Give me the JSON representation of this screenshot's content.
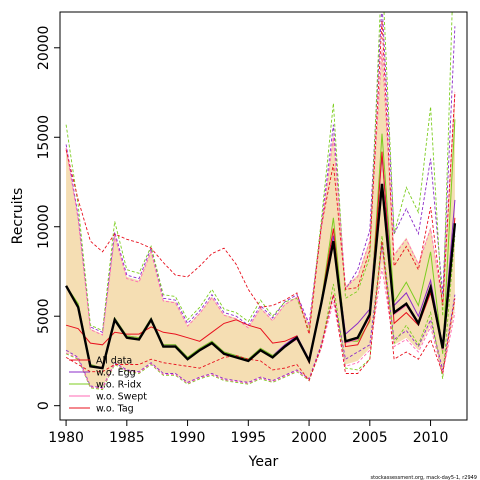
{
  "chart_data": {
    "type": "line",
    "xlabel": "Year",
    "ylabel": "Recruits",
    "xlim": [
      1979.5,
      2013
    ],
    "ylim": [
      -800,
      22000
    ],
    "xticks": [
      1980,
      1985,
      1990,
      1995,
      2000,
      2005,
      2010
    ],
    "yticks": [
      0,
      5000,
      10000,
      15000,
      20000
    ],
    "credit": "stockassessment.org, mack-day5-1, r2949",
    "x": [
      1980,
      1981,
      1982,
      1983,
      1984,
      1985,
      1986,
      1987,
      1988,
      1989,
      1990,
      1991,
      1992,
      1993,
      1994,
      1995,
      1996,
      1997,
      1998,
      1999,
      2000,
      2001,
      2002,
      2003,
      2004,
      2005,
      2006,
      2007,
      2008,
      2009,
      2010,
      2011,
      2012
    ],
    "base": {
      "name": "All data",
      "color": "#000000",
      "values": [
        6700,
        5500,
        2200,
        2100,
        4800,
        3800,
        3700,
        4800,
        3300,
        3300,
        2600,
        3100,
        3500,
        2900,
        2700,
        2500,
        3100,
        2700,
        3300,
        3800,
        2500,
        5700,
        9200,
        3600,
        3800,
        5100,
        12400,
        5200,
        5700,
        4600,
        6600,
        3200,
        10200
      ],
      "band_low": [
        3000,
        2700,
        1100,
        1000,
        2400,
        2000,
        1900,
        2400,
        1800,
        1800,
        1300,
        1600,
        1800,
        1500,
        1400,
        1300,
        1600,
        1400,
        1700,
        2000,
        1500,
        3300,
        6000,
        2300,
        2500,
        3200,
        8000,
        3400,
        3800,
        3100,
        4500,
        1900,
        5400
      ],
      "band_high": [
        14500,
        10500,
        4300,
        4000,
        9600,
        7200,
        7000,
        8700,
        5900,
        5800,
        4500,
        5200,
        6100,
        5100,
        4900,
        4400,
        5500,
        4800,
        5700,
        6100,
        4500,
        9900,
        15300,
        6700,
        7300,
        9300,
        20200,
        8500,
        9400,
        8000,
        10000,
        5800,
        17800
      ]
    },
    "series": [
      {
        "name": "w.o. Egg",
        "color": "#8B2BC8",
        "values": [
          6700,
          5600,
          2300,
          2100,
          4900,
          3900,
          3800,
          4900,
          3400,
          3400,
          2700,
          3200,
          3600,
          3000,
          2800,
          2600,
          3200,
          2800,
          3400,
          3900,
          2600,
          5800,
          9500,
          4000,
          4600,
          5400,
          14000,
          5600,
          6300,
          5000,
          7000,
          3300,
          11500
        ],
        "band_low": [
          3100,
          2700,
          1100,
          1000,
          2400,
          2000,
          1900,
          2400,
          1800,
          1800,
          1300,
          1600,
          1800,
          1500,
          1400,
          1300,
          1600,
          1400,
          1700,
          2000,
          1500,
          3400,
          6200,
          2600,
          3000,
          3400,
          9000,
          3700,
          4200,
          3300,
          4800,
          2000,
          6200
        ],
        "band_high": [
          14600,
          10600,
          4400,
          4100,
          9700,
          7300,
          7100,
          8800,
          6000,
          5900,
          4600,
          5300,
          6200,
          5200,
          5000,
          4500,
          5600,
          4900,
          5800,
          6200,
          4600,
          10000,
          15700,
          6500,
          7600,
          9800,
          22500,
          9600,
          11000,
          9600,
          13800,
          6200,
          21200
        ]
      },
      {
        "name": "w.o. R-idx",
        "color": "#7CCD1F",
        "values": [
          6700,
          5700,
          2300,
          2100,
          4900,
          3900,
          3800,
          4900,
          3400,
          3400,
          2700,
          3200,
          3600,
          3000,
          2800,
          2600,
          3200,
          2800,
          3300,
          3800,
          2500,
          5800,
          10500,
          3600,
          3600,
          4700,
          15200,
          5800,
          6900,
          5600,
          8600,
          2900,
          16000
        ],
        "band_low": [
          2900,
          2600,
          1000,
          900,
          2300,
          1900,
          1800,
          2300,
          1700,
          1700,
          1200,
          1500,
          1700,
          1400,
          1300,
          1200,
          1500,
          1300,
          1600,
          1900,
          1400,
          3200,
          6800,
          2100,
          2000,
          2600,
          9500,
          3500,
          4500,
          3400,
          5200,
          1500,
          9500
        ],
        "band_high": [
          15700,
          11200,
          4500,
          4200,
          10300,
          7600,
          7400,
          8900,
          6200,
          6100,
          4800,
          5500,
          6500,
          5400,
          5200,
          4700,
          5900,
          5000,
          5800,
          6000,
          4200,
          10300,
          16900,
          6000,
          6400,
          8300,
          24500,
          9600,
          12200,
          10800,
          16700,
          5000,
          27000
        ]
      },
      {
        "name": "w.o. Swept",
        "color": "#FF69B4",
        "values": [
          6650,
          5500,
          2200,
          2100,
          4800,
          3800,
          3700,
          4800,
          3300,
          3300,
          2600,
          3100,
          3500,
          2900,
          2700,
          2500,
          3100,
          2700,
          3300,
          3700,
          2500,
          5600,
          9000,
          3500,
          3700,
          5000,
          12000,
          5100,
          5600,
          4500,
          6500,
          3100,
          10000
        ],
        "band_low": [
          2950,
          2650,
          1050,
          950,
          2350,
          1950,
          1850,
          2350,
          1750,
          1750,
          1250,
          1550,
          1750,
          1450,
          1350,
          1250,
          1550,
          1350,
          1650,
          1950,
          1450,
          3200,
          5800,
          2200,
          2400,
          3100,
          7700,
          3300,
          3700,
          3000,
          4400,
          1800,
          5200
        ],
        "band_high": [
          14400,
          10400,
          4250,
          3950,
          9500,
          7100,
          6900,
          8600,
          5850,
          5750,
          4450,
          5150,
          6050,
          5050,
          4850,
          4350,
          5450,
          4750,
          5650,
          6050,
          4450,
          9800,
          15000,
          6600,
          7200,
          9200,
          19900,
          8400,
          9300,
          7900,
          9900,
          5700,
          17500
        ]
      },
      {
        "name": "w.o. Tag",
        "color": "#E8101E",
        "values": [
          4500,
          4300,
          3500,
          3400,
          4100,
          4000,
          4000,
          4400,
          4100,
          4000,
          3800,
          3600,
          4100,
          4600,
          4800,
          4500,
          4300,
          3500,
          3600,
          3900,
          2400,
          5800,
          9900,
          3300,
          3400,
          4800,
          14200,
          4600,
          5200,
          4500,
          6300,
          3200,
          10500
        ],
        "band_low": [
          2700,
          2300,
          1900,
          1900,
          2300,
          2300,
          2300,
          2600,
          2400,
          2300,
          2200,
          2100,
          2400,
          2700,
          2800,
          2600,
          2500,
          2000,
          2100,
          2300,
          1400,
          3300,
          6200,
          1800,
          1800,
          2600,
          9200,
          2600,
          3000,
          2600,
          3700,
          1800,
          6000
        ],
        "band_high": [
          14300,
          11500,
          9200,
          8600,
          9600,
          9300,
          9100,
          8800,
          8000,
          7300,
          7200,
          7800,
          8500,
          8800,
          7900,
          6500,
          5500,
          5600,
          5900,
          6300,
          4000,
          10000,
          13500,
          6500,
          6600,
          8700,
          21500,
          7800,
          8900,
          7600,
          11100,
          5600,
          17500
        ]
      }
    ]
  }
}
